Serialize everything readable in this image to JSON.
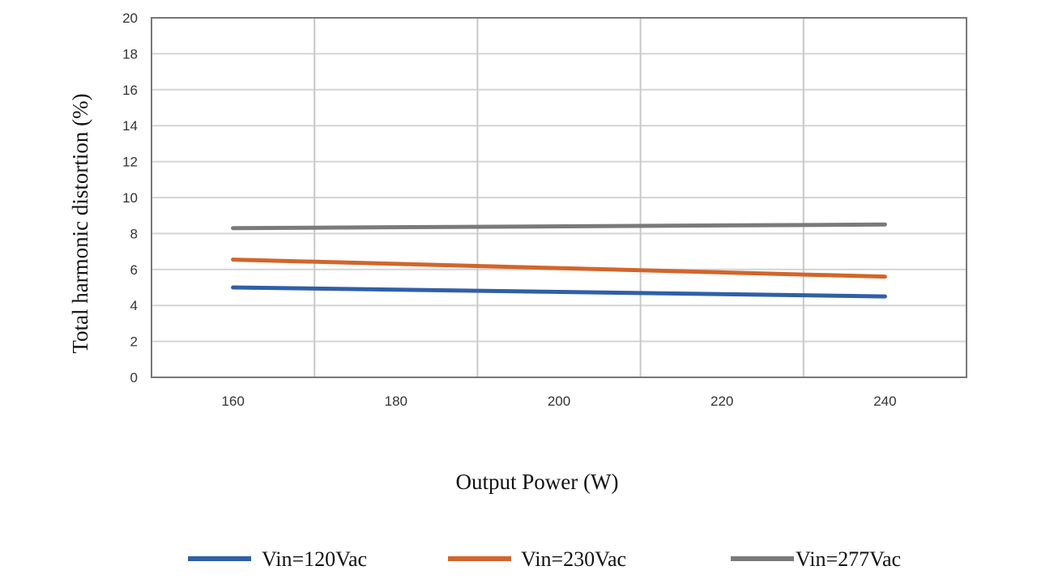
{
  "chart_data": {
    "type": "line",
    "title": "",
    "xlabel": "Output Power (W)",
    "ylabel": "Total harmonic distortion (%)",
    "xlim": [
      150,
      250
    ],
    "ylim": [
      0,
      20
    ],
    "xticks": [
      160,
      180,
      200,
      220,
      240
    ],
    "yticks": [
      0,
      2,
      4,
      6,
      8,
      10,
      12,
      14,
      16,
      18,
      20
    ],
    "grid": true,
    "legend_position": "bottom",
    "series": [
      {
        "name": "Vin=120Vac",
        "color": "#2f5fa8",
        "x": [
          160,
          240
        ],
        "y": [
          5.0,
          4.5
        ]
      },
      {
        "name": "Vin=230Vac",
        "color": "#d2652a",
        "x": [
          160,
          240
        ],
        "y": [
          6.55,
          5.6
        ]
      },
      {
        "name": "Vin=277Vac",
        "color": "#7a7a7a",
        "x": [
          160,
          240
        ],
        "y": [
          8.3,
          8.5
        ]
      }
    ]
  }
}
